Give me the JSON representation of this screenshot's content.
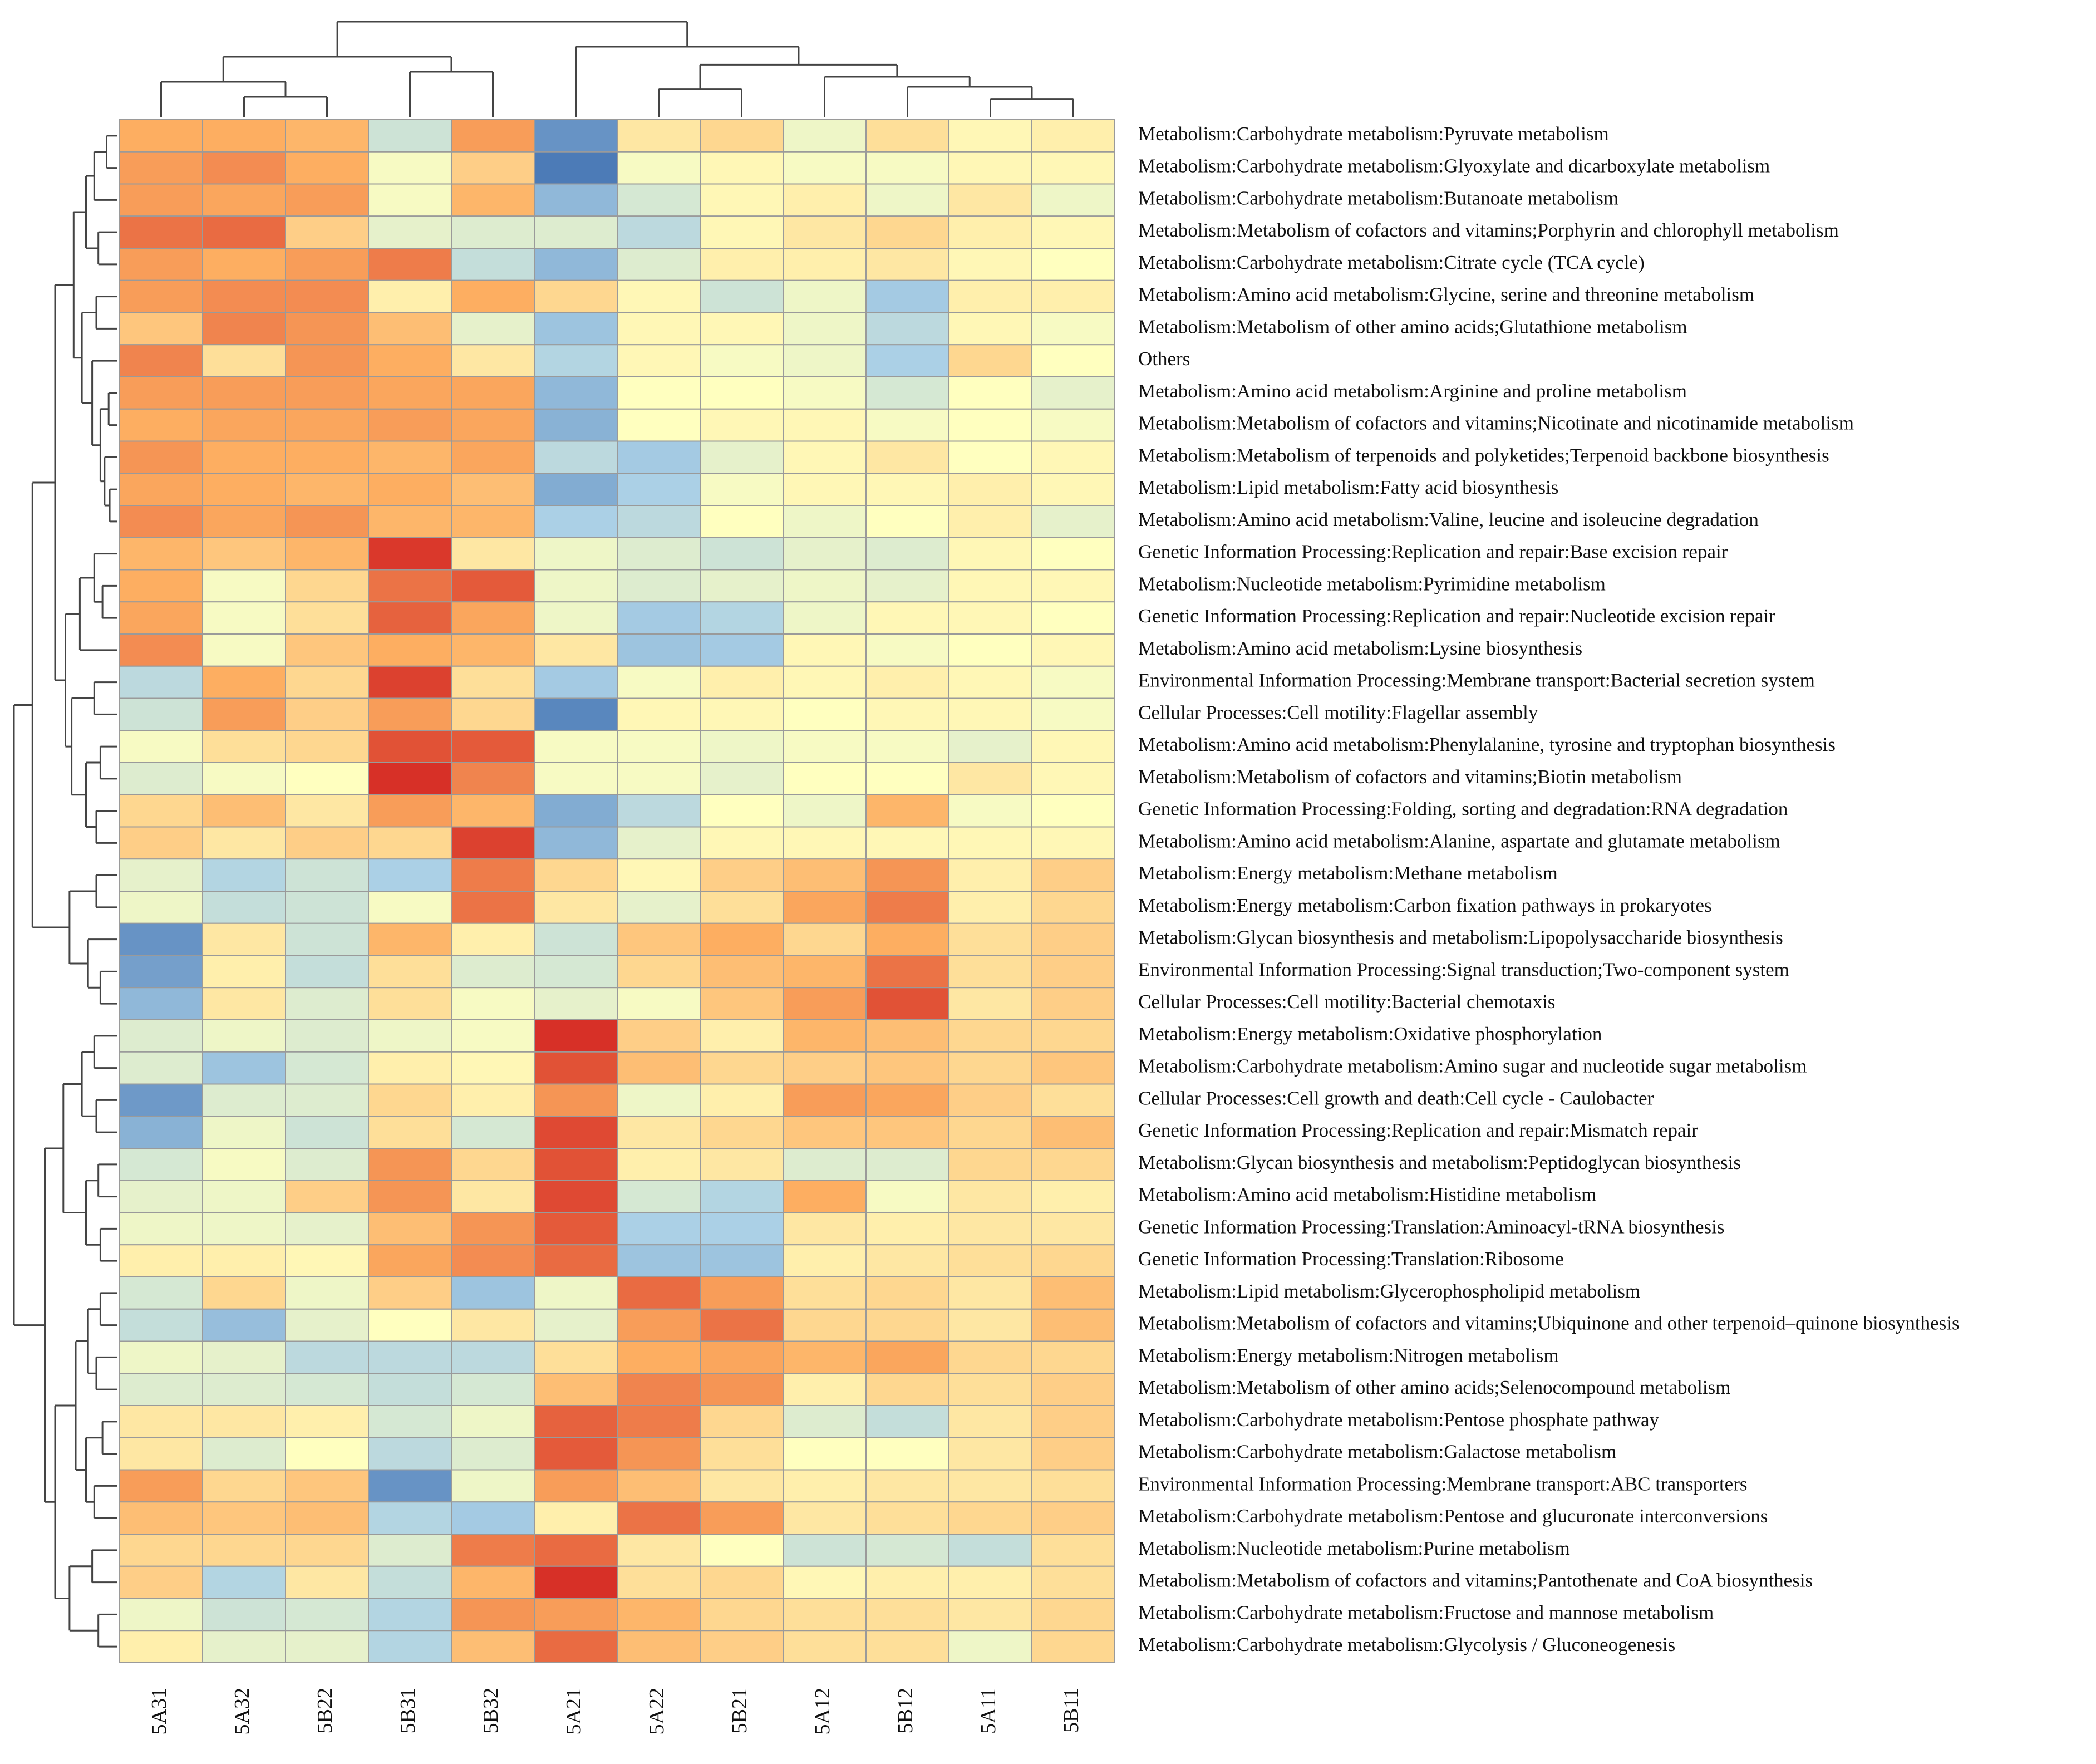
{
  "chart_data": {
    "type": "heatmap",
    "title": "",
    "scale": "row z-score (estimated from colour)",
    "color_scale": {
      "low": "#4575b4",
      "mid_low": "#abd0e6",
      "mid": "#ffffbf",
      "mid_high": "#fdae61",
      "high": "#d73027"
    },
    "columns": [
      "5A31",
      "5A32",
      "5B22",
      "5B31",
      "5B32",
      "5A21",
      "5A22",
      "5B21",
      "5A12",
      "5B12",
      "5A11",
      "5B11"
    ],
    "rows": [
      "Metabolism:Carbohydrate metabolism:Pyruvate metabolism",
      "Metabolism:Carbohydrate metabolism:Glyoxylate and dicarboxylate metabolism",
      "Metabolism:Carbohydrate metabolism:Butanoate metabolism",
      "Metabolism:Metabolism of cofactors and vitamins;Porphyrin and chlorophyll metabolism",
      "Metabolism:Carbohydrate metabolism:Citrate cycle (TCA cycle)",
      "Metabolism:Amino acid metabolism:Glycine, serine and threonine metabolism",
      "Metabolism:Metabolism of other amino acids;Glutathione metabolism",
      "Others",
      "Metabolism:Amino acid metabolism:Arginine and proline metabolism",
      "Metabolism:Metabolism of cofactors and vitamins;Nicotinate and nicotinamide metabolism",
      "Metabolism:Metabolism of terpenoids and polyketides;Terpenoid backbone biosynthesis",
      "Metabolism:Lipid metabolism:Fatty acid biosynthesis",
      "Metabolism:Amino acid metabolism:Valine, leucine and isoleucine degradation",
      "Genetic Information Processing:Replication and repair:Base excision repair",
      "Metabolism:Nucleotide metabolism:Pyrimidine metabolism",
      "Genetic Information Processing:Replication and repair:Nucleotide excision repair",
      "Metabolism:Amino acid metabolism:Lysine biosynthesis",
      "Environmental Information Processing:Membrane transport:Bacterial secretion system",
      "Cellular Processes:Cell motility:Flagellar assembly",
      "Metabolism:Amino acid metabolism:Phenylalanine, tyrosine and tryptophan biosynthesis",
      "Metabolism:Metabolism of cofactors and vitamins;Biotin metabolism",
      "Genetic Information Processing:Folding, sorting and degradation:RNA degradation",
      "Metabolism:Amino acid metabolism:Alanine, aspartate and glutamate metabolism",
      "Metabolism:Energy metabolism:Methane metabolism",
      "Metabolism:Energy metabolism:Carbon fixation pathways in prokaryotes",
      "Metabolism:Glycan biosynthesis and metabolism:Lipopolysaccharide biosynthesis",
      "Environmental Information Processing:Signal transduction;Two-component system",
      "Cellular Processes:Cell motility:Bacterial chemotaxis",
      "Metabolism:Energy metabolism:Oxidative phosphorylation",
      "Metabolism:Carbohydrate metabolism:Amino sugar and nucleotide sugar metabolism",
      "Cellular Processes:Cell growth and death:Cell cycle - Caulobacter",
      "Genetic Information Processing:Replication and repair:Mismatch repair",
      "Metabolism:Glycan biosynthesis and metabolism:Peptidoglycan biosynthesis",
      "Metabolism:Amino acid metabolism:Histidine metabolism",
      "Genetic Information Processing:Translation:Aminoacyl-tRNA biosynthesis",
      "Genetic Information Processing:Translation:Ribosome",
      "Metabolism:Lipid metabolism:Glycerophospholipid metabolism",
      "Metabolism:Metabolism of cofactors and vitamins;Ubiquinone and other terpenoid–quinone biosynthesis",
      "Metabolism:Energy metabolism:Nitrogen metabolism",
      "Metabolism:Metabolism of other amino acids;Selenocompound metabolism",
      "Metabolism:Carbohydrate metabolism:Pentose phosphate pathway",
      "Metabolism:Carbohydrate metabolism:Galactose metabolism",
      "Environmental Information Processing:Membrane transport:ABC transporters",
      "Metabolism:Carbohydrate metabolism:Pentose and glucuronate interconversions",
      "Metabolism:Nucleotide metabolism:Purine metabolism",
      "Metabolism:Metabolism of cofactors and vitamins;Pantothenate and CoA biosynthesis",
      "Metabolism:Carbohydrate metabolism:Fructose and mannose metabolism",
      "Metabolism:Carbohydrate metabolism:Glycolysis / Gluconeogenesis"
    ],
    "values": [
      [
        1.0,
        1.0,
        0.9,
        -0.6,
        1.2,
        -2.0,
        0.3,
        0.5,
        -0.2,
        0.4,
        0.1,
        0.2
      ],
      [
        1.2,
        1.4,
        1.0,
        -0.1,
        0.6,
        -2.4,
        -0.1,
        0.1,
        -0.1,
        -0.1,
        0.1,
        0.1
      ],
      [
        1.2,
        1.1,
        1.2,
        -0.1,
        0.9,
        -1.4,
        -0.5,
        0.1,
        0.2,
        -0.2,
        0.3,
        -0.2
      ],
      [
        1.7,
        1.8,
        0.6,
        -0.3,
        -0.4,
        -0.4,
        -0.8,
        0.1,
        0.3,
        0.5,
        0.2,
        0.1
      ],
      [
        1.2,
        1.0,
        1.2,
        1.6,
        -0.7,
        -1.4,
        -0.4,
        0.2,
        0.2,
        0.3,
        0.1,
        0.0
      ],
      [
        1.2,
        1.4,
        1.4,
        0.2,
        1.0,
        0.5,
        0.1,
        -0.6,
        -0.2,
        -1.1,
        0.2,
        0.2
      ],
      [
        0.7,
        1.5,
        1.3,
        0.8,
        -0.3,
        -1.2,
        0.1,
        0.1,
        -0.2,
        -0.8,
        0.1,
        -0.1
      ],
      [
        1.5,
        0.4,
        1.3,
        1.0,
        0.3,
        -0.9,
        0.1,
        -0.1,
        -0.2,
        -1.0,
        0.5,
        0.0
      ],
      [
        1.2,
        1.2,
        1.2,
        1.1,
        1.1,
        -1.4,
        0.0,
        0.0,
        -0.1,
        -0.5,
        0.0,
        -0.3
      ],
      [
        1.0,
        1.1,
        1.1,
        1.2,
        1.1,
        -1.5,
        0.0,
        0.1,
        0.1,
        -0.1,
        0.0,
        -0.1
      ],
      [
        1.3,
        1.0,
        1.0,
        0.9,
        1.1,
        -0.8,
        -1.1,
        -0.3,
        0.1,
        0.3,
        0.0,
        0.1
      ],
      [
        1.1,
        1.0,
        0.9,
        1.0,
        0.8,
        -1.6,
        -1.0,
        -0.1,
        0.1,
        0.1,
        0.2,
        0.1
      ],
      [
        1.4,
        1.1,
        1.3,
        0.9,
        0.9,
        -1.0,
        -0.8,
        0.0,
        -0.2,
        0.0,
        0.2,
        -0.3
      ],
      [
        0.9,
        0.7,
        0.9,
        2.4,
        0.3,
        -0.2,
        -0.4,
        -0.6,
        -0.3,
        -0.4,
        0.1,
        0.0
      ],
      [
        1.0,
        -0.1,
        0.5,
        1.7,
        2.0,
        -0.2,
        -0.4,
        -0.3,
        -0.2,
        -0.3,
        0.1,
        0.1
      ],
      [
        1.1,
        -0.1,
        0.4,
        1.9,
        1.1,
        -0.2,
        -1.1,
        -0.9,
        -0.2,
        0.1,
        0.1,
        0.0
      ],
      [
        1.4,
        -0.1,
        0.7,
        1.0,
        0.9,
        0.3,
        -1.2,
        -1.1,
        0.1,
        -0.1,
        0.0,
        0.1
      ],
      [
        -0.8,
        1.0,
        0.5,
        2.3,
        0.4,
        -1.1,
        -0.1,
        0.2,
        0.1,
        0.2,
        0.1,
        -0.1
      ],
      [
        -0.6,
        1.2,
        0.6,
        1.2,
        0.5,
        -2.2,
        0.1,
        0.1,
        0.0,
        0.1,
        0.1,
        -0.1
      ],
      [
        -0.1,
        0.4,
        0.5,
        2.1,
        2.0,
        -0.1,
        -0.1,
        -0.2,
        -0.1,
        -0.1,
        -0.3,
        0.1
      ],
      [
        -0.4,
        -0.1,
        0.0,
        2.5,
        1.5,
        -0.1,
        -0.1,
        -0.3,
        0.0,
        0.0,
        0.3,
        0.1
      ],
      [
        0.5,
        0.8,
        0.3,
        1.2,
        0.9,
        -1.6,
        -0.8,
        0.0,
        -0.2,
        0.9,
        -0.1,
        0.0
      ],
      [
        0.6,
        0.3,
        0.6,
        0.5,
        2.3,
        -1.4,
        -0.3,
        0.1,
        0.1,
        0.1,
        0.1,
        0.1
      ],
      [
        -0.3,
        -0.9,
        -0.6,
        -1.0,
        1.6,
        0.5,
        0.1,
        0.6,
        0.8,
        1.3,
        0.2,
        0.6
      ],
      [
        -0.2,
        -0.7,
        -0.6,
        -0.1,
        1.7,
        0.3,
        -0.3,
        0.4,
        1.1,
        1.6,
        0.2,
        0.5
      ],
      [
        -2.0,
        0.3,
        -0.6,
        0.9,
        0.2,
        -0.6,
        0.7,
        1.0,
        0.5,
        1.0,
        0.4,
        0.6
      ],
      [
        -1.8,
        0.2,
        -0.7,
        0.4,
        -0.4,
        -0.5,
        0.5,
        0.8,
        0.9,
        1.7,
        0.4,
        0.6
      ],
      [
        -1.4,
        0.3,
        -0.4,
        0.4,
        -0.1,
        -0.3,
        -0.1,
        0.7,
        1.2,
        2.1,
        0.3,
        0.6
      ],
      [
        -0.4,
        -0.2,
        -0.4,
        -0.2,
        -0.1,
        2.7,
        0.6,
        0.2,
        0.9,
        0.8,
        0.5,
        0.5
      ],
      [
        -0.4,
        -1.2,
        -0.5,
        0.2,
        0.1,
        2.1,
        0.8,
        0.5,
        0.6,
        0.7,
        0.5,
        0.7
      ],
      [
        -1.9,
        -0.4,
        -0.4,
        0.5,
        0.2,
        1.3,
        -0.2,
        0.2,
        1.2,
        1.1,
        0.6,
        0.4
      ],
      [
        -1.5,
        -0.2,
        -0.6,
        0.4,
        -0.5,
        2.2,
        0.3,
        0.5,
        0.7,
        0.7,
        0.5,
        0.8
      ],
      [
        -0.5,
        -0.1,
        -0.4,
        1.3,
        0.5,
        2.1,
        0.2,
        0.3,
        -0.4,
        -0.4,
        0.5,
        0.5
      ],
      [
        -0.3,
        -0.2,
        0.6,
        1.3,
        0.3,
        2.2,
        -0.5,
        -0.9,
        1.0,
        -0.1,
        0.3,
        0.2
      ],
      [
        -0.2,
        -0.2,
        -0.3,
        0.8,
        1.3,
        2.0,
        -1.0,
        -1.0,
        0.3,
        0.2,
        0.3,
        0.3
      ],
      [
        0.2,
        0.2,
        0.1,
        1.1,
        1.4,
        1.8,
        -1.2,
        -1.2,
        0.2,
        0.3,
        0.4,
        0.5
      ],
      [
        -0.5,
        0.5,
        -0.2,
        0.6,
        -1.2,
        -0.2,
        1.8,
        1.2,
        0.4,
        0.5,
        0.3,
        0.8
      ],
      [
        -0.7,
        -1.3,
        -0.3,
        0.0,
        0.3,
        -0.3,
        1.2,
        1.7,
        0.5,
        0.5,
        0.3,
        0.8
      ],
      [
        -0.2,
        -0.3,
        -0.8,
        -0.8,
        -0.8,
        0.4,
        1.0,
        1.1,
        0.9,
        1.1,
        0.5,
        0.5
      ],
      [
        -0.4,
        -0.4,
        -0.5,
        -0.7,
        -0.5,
        0.8,
        1.5,
        1.3,
        0.2,
        0.5,
        0.4,
        0.6
      ],
      [
        0.3,
        0.3,
        0.2,
        -0.5,
        -0.2,
        1.9,
        1.6,
        0.5,
        -0.4,
        -0.7,
        0.3,
        0.6
      ],
      [
        0.3,
        -0.4,
        0.0,
        -0.8,
        -0.4,
        2.0,
        1.3,
        0.4,
        0.0,
        0.0,
        0.3,
        0.6
      ],
      [
        1.2,
        0.5,
        0.7,
        -2.0,
        -0.2,
        1.2,
        0.8,
        0.3,
        0.2,
        0.3,
        0.3,
        0.4
      ],
      [
        0.8,
        0.7,
        0.8,
        -0.9,
        -1.1,
        0.2,
        1.7,
        1.2,
        0.3,
        0.4,
        0.5,
        0.6
      ],
      [
        0.5,
        0.5,
        0.5,
        -0.4,
        1.6,
        1.8,
        0.3,
        0.0,
        -0.6,
        -0.5,
        -0.7,
        0.4
      ],
      [
        0.6,
        -0.9,
        0.3,
        -0.7,
        0.9,
        2.5,
        0.4,
        0.5,
        0.1,
        0.2,
        0.2,
        0.4
      ],
      [
        -0.2,
        -0.6,
        -0.5,
        -0.9,
        1.3,
        1.2,
        0.9,
        0.5,
        0.4,
        0.4,
        0.3,
        0.5
      ],
      [
        0.2,
        -0.3,
        -0.3,
        -0.9,
        0.8,
        1.8,
        0.8,
        0.6,
        0.4,
        0.4,
        -0.2,
        0.5
      ]
    ]
  }
}
